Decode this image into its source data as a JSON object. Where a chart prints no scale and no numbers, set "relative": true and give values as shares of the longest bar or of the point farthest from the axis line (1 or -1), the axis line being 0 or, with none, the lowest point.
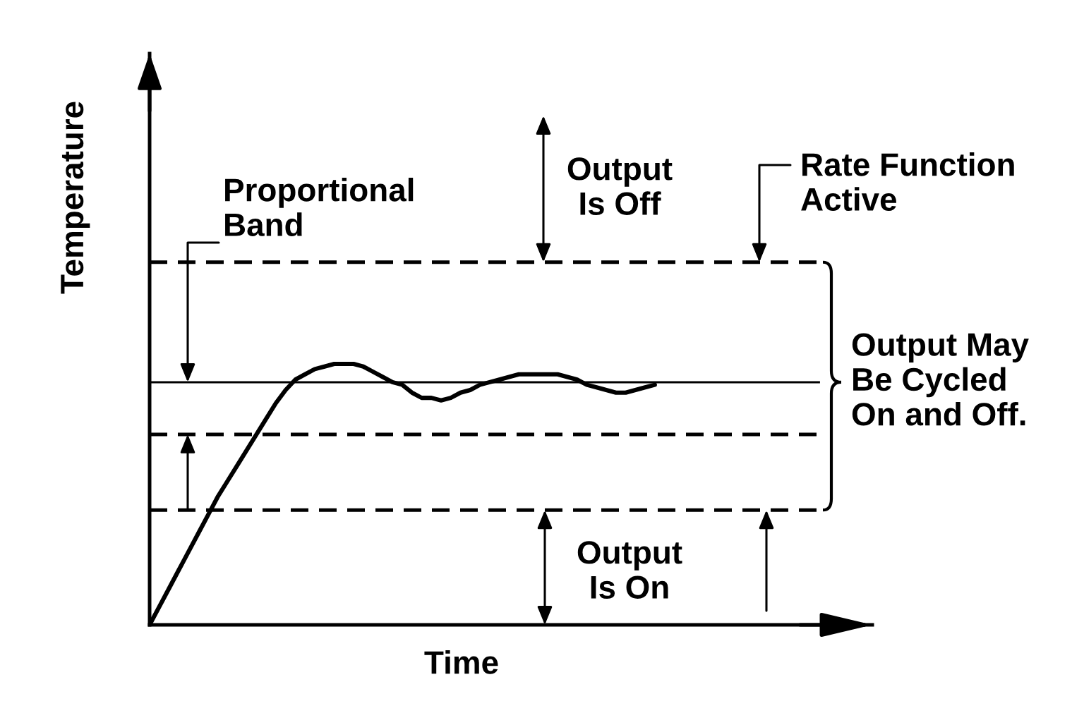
{
  "chart_data": {
    "type": "line",
    "relative": true,
    "xlabel": "Time",
    "ylabel": "Temperature",
    "grid": false,
    "line_style": "solid",
    "categories": [
      null,
      null,
      null,
      null,
      null,
      null,
      null,
      null,
      null,
      null,
      null,
      null,
      null,
      null,
      null,
      null,
      null,
      null,
      null,
      null,
      null,
      null,
      null,
      null,
      null,
      null,
      null,
      null,
      null,
      null,
      null,
      null,
      null,
      null,
      null,
      null,
      null,
      null,
      null,
      null,
      null,
      null,
      null,
      null,
      null,
      null,
      null,
      null,
      null,
      null,
      null,
      null,
      null,
      null,
      null,
      null,
      null,
      null,
      null,
      null,
      null,
      null,
      null,
      null,
      null,
      null,
      null,
      null,
      null,
      null
    ],
    "series": [
      {
        "color": "#000000",
        "values": [
          0,
          0.07,
          0.14,
          0.21,
          0.28,
          0.35,
          0.42,
          0.49,
          0.55,
          0.61,
          0.67,
          0.73,
          0.79,
          0.85,
          0.9,
          0.94,
          0.96,
          0.98,
          0.99,
          1.0,
          1.0,
          1.0,
          0.99,
          0.97,
          0.95,
          0.93,
          0.92,
          0.89,
          0.87,
          0.87,
          0.86,
          0.87,
          0.89,
          0.9,
          0.92,
          0.93,
          0.94,
          0.95,
          0.96,
          0.96,
          0.96,
          0.96,
          0.96,
          0.95,
          0.94,
          0.92,
          0.91,
          0.9,
          0.89,
          0.89,
          0.9,
          0.91,
          0.92,
          null,
          null,
          null,
          null,
          null,
          null,
          null,
          null,
          null,
          null,
          null,
          null,
          null,
          null,
          null,
          null,
          null
        ]
      }
    ],
    "ref_lines": [
      {
        "axis": "y",
        "value": 1.39,
        "line_style": "dashed",
        "color": "#000000"
      },
      {
        "axis": "y",
        "value": 0.93,
        "line_style": "solid",
        "color": "#000000"
      },
      {
        "axis": "y",
        "value": 0.73,
        "line_style": "dashed",
        "color": "#000000"
      },
      {
        "axis": "y",
        "value": 0.44,
        "line_style": "dashed",
        "color": "#000000"
      }
    ],
    "annotations": [
      "Proportional\nBand",
      "Output\nIs Off",
      "Rate Function\nActive",
      "Output May\nBe Cycled\nOn and Off.",
      "Output\nIs On"
    ]
  }
}
